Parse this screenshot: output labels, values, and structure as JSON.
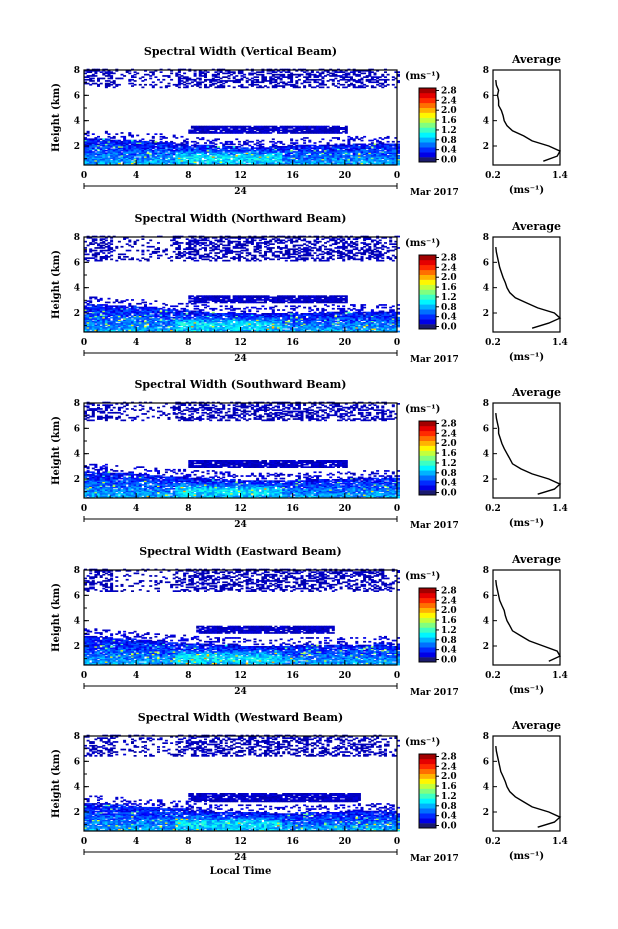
{
  "figure": {
    "xlabel": "Local Time",
    "day_label": "24",
    "month_label": "Mar 2017",
    "ylabel": "Height (km)",
    "unit_label": "(ms⁻¹)",
    "avg_title": "Average"
  },
  "chart_data": [
    {
      "type": "heatmap",
      "title": "Spectral Width (Vertical Beam)",
      "x_ticks": [
        "0",
        "4",
        "8",
        "12",
        "16",
        "20",
        "0"
      ],
      "xlim": [
        0,
        24
      ],
      "ylim": [
        0.5,
        8
      ],
      "y_ticks": [
        "2",
        "4",
        "6",
        "8"
      ],
      "colorbar": {
        "ticks": [
          "0.0",
          "0.4",
          "0.8",
          "1.2",
          "1.6",
          "2.0",
          "2.4",
          "2.8"
        ],
        "range": [
          0.0,
          3.0
        ]
      },
      "layers": {
        "boundary_layer_top_km": [
          2.6,
          2.5,
          2.4,
          2.3,
          2.1,
          2.0,
          1.9,
          1.9,
          2.0,
          2.1,
          2.1,
          2.2,
          2.2
        ],
        "cloud_band_km": [
          3.0,
          3.6
        ],
        "cloud_band_hours": [
          8,
          20
        ],
        "upper_echo_km": [
          6.5,
          8.0
        ]
      },
      "average_profile": {
        "title": "Average",
        "xlabel": "(ms⁻¹)",
        "x_ticks": [
          "0.2",
          "1.4"
        ],
        "y_ticks": [
          "2",
          "4",
          "6",
          "8"
        ],
        "xlim": [
          0.2,
          1.4
        ],
        "ylim": [
          0.5,
          8
        ],
        "height_km": [
          0.8,
          1.2,
          1.6,
          2.0,
          2.4,
          2.8,
          3.2,
          3.6,
          4.0,
          4.4,
          4.8,
          5.2,
          5.6,
          6.0,
          6.4,
          6.8,
          7.2
        ],
        "width_ms": [
          1.1,
          1.35,
          1.4,
          1.2,
          0.9,
          0.75,
          0.55,
          0.45,
          0.4,
          0.38,
          0.35,
          0.3,
          0.3,
          0.28,
          0.3,
          0.26,
          0.25
        ]
      }
    },
    {
      "type": "heatmap",
      "title": "Spectral Width (Northward Beam)",
      "x_ticks": [
        "0",
        "4",
        "8",
        "12",
        "16",
        "20",
        "0"
      ],
      "xlim": [
        0,
        24
      ],
      "ylim": [
        0.5,
        8
      ],
      "y_ticks": [
        "2",
        "4",
        "6",
        "8"
      ],
      "colorbar": {
        "ticks": [
          "0.0",
          "0.4",
          "0.8",
          "1.2",
          "1.6",
          "2.0",
          "2.4",
          "2.8"
        ],
        "range": [
          0.0,
          3.0
        ]
      },
      "layers": {
        "boundary_layer_top_km": [
          2.7,
          2.6,
          2.5,
          2.3,
          2.2,
          2.0,
          2.0,
          1.9,
          2.0,
          2.0,
          2.1,
          2.1,
          2.0
        ],
        "cloud_band_km": [
          2.8,
          3.4
        ],
        "cloud_band_hours": [
          8,
          20
        ],
        "upper_echo_km": [
          6.0,
          8.0
        ]
      },
      "average_profile": {
        "title": "Average",
        "xlabel": "(ms⁻¹)",
        "x_ticks": [
          "0.2",
          "1.4"
        ],
        "y_ticks": [
          "2",
          "4",
          "6",
          "8"
        ],
        "xlim": [
          0.2,
          1.4
        ],
        "ylim": [
          0.5,
          8
        ],
        "height_km": [
          0.8,
          1.2,
          1.6,
          2.0,
          2.4,
          2.8,
          3.2,
          3.6,
          4.0,
          4.4,
          4.8,
          5.2,
          5.6,
          6.0,
          6.4,
          6.8,
          7.2
        ],
        "width_ms": [
          0.9,
          1.2,
          1.4,
          1.3,
          1.0,
          0.8,
          0.6,
          0.5,
          0.45,
          0.42,
          0.38,
          0.35,
          0.32,
          0.3,
          0.28,
          0.26,
          0.25
        ]
      }
    },
    {
      "type": "heatmap",
      "title": "Spectral Width (Southward Beam)",
      "x_ticks": [
        "0",
        "4",
        "8",
        "12",
        "16",
        "20",
        "0"
      ],
      "xlim": [
        0,
        24
      ],
      "ylim": [
        0.5,
        8
      ],
      "y_ticks": [
        "2",
        "4",
        "6",
        "8"
      ],
      "colorbar": {
        "ticks": [
          "0.0",
          "0.4",
          "0.8",
          "1.2",
          "1.6",
          "2.0",
          "2.4",
          "2.8"
        ],
        "range": [
          0.0,
          3.0
        ]
      },
      "layers": {
        "boundary_layer_top_km": [
          2.6,
          2.5,
          2.4,
          2.2,
          2.1,
          2.0,
          1.9,
          1.9,
          1.9,
          2.0,
          2.0,
          2.1,
          2.1
        ],
        "cloud_band_km": [
          2.9,
          3.5
        ],
        "cloud_band_hours": [
          8,
          20
        ],
        "upper_echo_km": [
          6.5,
          8.0
        ]
      },
      "average_profile": {
        "title": "Average",
        "xlabel": "(ms⁻¹)",
        "x_ticks": [
          "0.2",
          "1.4"
        ],
        "y_ticks": [
          "2",
          "4",
          "6",
          "8"
        ],
        "xlim": [
          0.2,
          1.4
        ],
        "ylim": [
          0.5,
          8
        ],
        "height_km": [
          0.8,
          1.2,
          1.6,
          2.0,
          2.4,
          2.8,
          3.2,
          3.6,
          4.0,
          4.4,
          4.8,
          5.2,
          5.6,
          6.0,
          6.4,
          6.8,
          7.2
        ],
        "width_ms": [
          1.0,
          1.3,
          1.4,
          1.2,
          0.9,
          0.7,
          0.55,
          0.5,
          0.45,
          0.4,
          0.36,
          0.33,
          0.3,
          0.3,
          0.28,
          0.26,
          0.25
        ]
      }
    },
    {
      "type": "heatmap",
      "title": "Spectral Width (Eastward Beam)",
      "x_ticks": [
        "0",
        "4",
        "8",
        "12",
        "16",
        "20",
        "0"
      ],
      "xlim": [
        0,
        24
      ],
      "ylim": [
        0.5,
        8
      ],
      "y_ticks": [
        "2",
        "4",
        "6",
        "8"
      ],
      "colorbar": {
        "ticks": [
          "0.0",
          "0.4",
          "0.8",
          "1.2",
          "1.6",
          "2.0",
          "2.4",
          "2.8"
        ],
        "range": [
          0.0,
          3.0
        ]
      },
      "layers": {
        "boundary_layer_top_km": [
          2.8,
          2.6,
          2.5,
          2.3,
          2.2,
          2.1,
          2.0,
          2.0,
          2.0,
          2.1,
          2.1,
          2.1,
          2.2
        ],
        "cloud_band_km": [
          3.0,
          3.6
        ],
        "cloud_band_hours": [
          8.5,
          19
        ],
        "upper_echo_km": [
          6.2,
          8.0
        ]
      },
      "average_profile": {
        "title": "Average",
        "xlabel": "(ms⁻¹)",
        "x_ticks": [
          "0.2",
          "1.4"
        ],
        "y_ticks": [
          "2",
          "4",
          "6",
          "8"
        ],
        "xlim": [
          0.2,
          1.4
        ],
        "ylim": [
          0.5,
          8
        ],
        "height_km": [
          0.8,
          1.2,
          1.6,
          2.0,
          2.4,
          2.8,
          3.2,
          3.6,
          4.0,
          4.4,
          4.8,
          5.2,
          5.6,
          6.0,
          6.4,
          6.8,
          7.2
        ],
        "width_ms": [
          1.2,
          1.4,
          1.35,
          1.1,
          0.85,
          0.7,
          0.55,
          0.5,
          0.45,
          0.42,
          0.4,
          0.36,
          0.32,
          0.3,
          0.28,
          0.26,
          0.25
        ]
      }
    },
    {
      "type": "heatmap",
      "title": "Spectral Width (Westward Beam)",
      "x_ticks": [
        "0",
        "4",
        "8",
        "12",
        "16",
        "20",
        "0"
      ],
      "xlim": [
        0,
        24
      ],
      "ylim": [
        0.5,
        8
      ],
      "y_ticks": [
        "2",
        "4",
        "6",
        "8"
      ],
      "colorbar": {
        "ticks": [
          "0.0",
          "0.4",
          "0.8",
          "1.2",
          "1.6",
          "2.0",
          "2.4",
          "2.8"
        ],
        "range": [
          0.0,
          3.0
        ]
      },
      "layers": {
        "boundary_layer_top_km": [
          2.7,
          2.6,
          2.4,
          2.3,
          2.2,
          2.0,
          2.0,
          1.9,
          1.9,
          2.0,
          2.0,
          2.1,
          2.1
        ],
        "cloud_band_km": [
          2.8,
          3.5
        ],
        "cloud_band_hours": [
          8,
          21
        ],
        "upper_echo_km": [
          6.3,
          8.0
        ]
      },
      "average_profile": {
        "title": "Average",
        "xlabel": "(ms⁻¹)",
        "x_ticks": [
          "0.2",
          "1.4"
        ],
        "y_ticks": [
          "2",
          "4",
          "6",
          "8"
        ],
        "xlim": [
          0.2,
          1.4
        ],
        "ylim": [
          0.5,
          8
        ],
        "height_km": [
          0.8,
          1.2,
          1.6,
          2.0,
          2.4,
          2.8,
          3.2,
          3.6,
          4.0,
          4.4,
          4.8,
          5.2,
          5.6,
          6.0,
          6.4,
          6.8,
          7.2
        ],
        "width_ms": [
          1.0,
          1.3,
          1.4,
          1.2,
          0.9,
          0.75,
          0.6,
          0.5,
          0.45,
          0.42,
          0.38,
          0.34,
          0.32,
          0.3,
          0.28,
          0.26,
          0.25
        ]
      }
    }
  ]
}
